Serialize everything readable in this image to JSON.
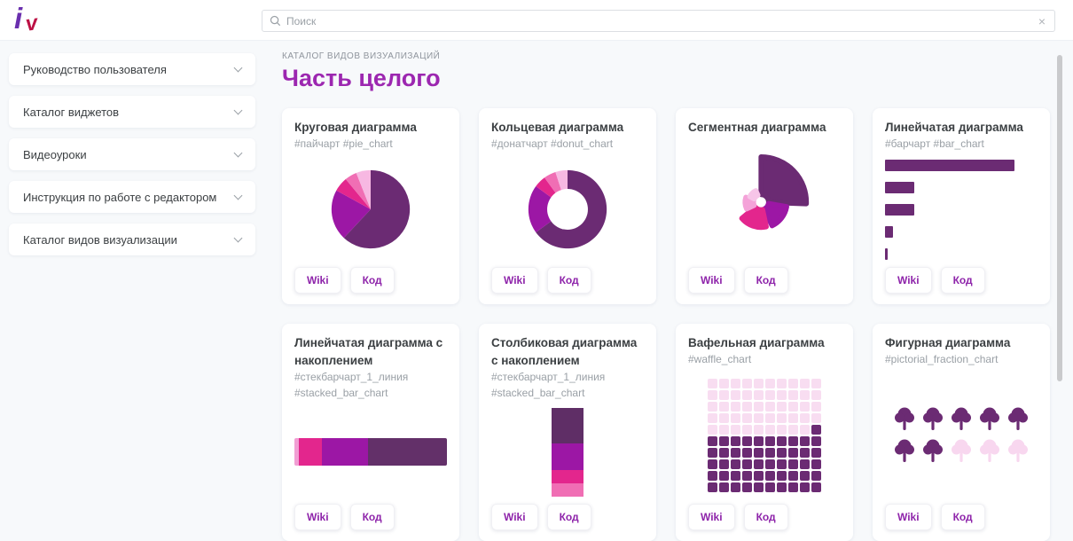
{
  "header": {
    "logo": {
      "char_i": "i",
      "char_v": "v"
    },
    "search_placeholder": "Поиск",
    "clear_label": "×"
  },
  "sidebar": {
    "items": [
      {
        "label": "Руководство пользователя"
      },
      {
        "label": "Каталог виджетов"
      },
      {
        "label": "Видеоуроки"
      },
      {
        "label": "Инструкция по работе с редактором"
      },
      {
        "label": "Каталог видов визуализации"
      }
    ]
  },
  "main": {
    "breadcrumb": "КАТАЛОГ ВИДОВ ВИЗУАЛИЗАЦИЙ",
    "title": "Часть целого",
    "button_labels": {
      "wiki": "Wiki",
      "code": "Код"
    }
  },
  "palette": {
    "dark_purple": "#6b2b73",
    "purple": "#9c17a5",
    "pink": "#e3268d",
    "mid_pink": "#f06eb4",
    "light_pink": "#f5aede",
    "pale_pink": "#f8ddf1",
    "accent_title": "#9c27b0",
    "button_text": "#8e24aa"
  },
  "cards": [
    {
      "title": "Круговая диаграмма",
      "tags": [
        "#пайчарт #pie_chart"
      ],
      "chart": {
        "type": "pie",
        "values": [
          62,
          21,
          6,
          5,
          6
        ],
        "colors": [
          "#6b2b73",
          "#9c17a5",
          "#e3268d",
          "#f06eb4",
          "#f7b8e2"
        ]
      }
    },
    {
      "title": "Кольцевая диаграмма",
      "tags": [
        "#донатчарт #donut_chart"
      ],
      "chart": {
        "type": "donut",
        "hole": 0.52,
        "values": [
          65,
          20,
          5,
          5,
          5
        ],
        "colors": [
          "#6b2b73",
          "#9c17a5",
          "#e3268d",
          "#f06eb4",
          "#f7b8e2"
        ]
      }
    },
    {
      "title": "Сегментная диаграмма",
      "tags": [],
      "chart": {
        "type": "segment",
        "petals": [
          {
            "start": 0,
            "end": 92,
            "r": 54,
            "color": "#6b2b73"
          },
          {
            "start": 100,
            "end": 155,
            "r": 31,
            "color": "#9c17a5"
          },
          {
            "start": 168,
            "end": 230,
            "r": 30,
            "color": "#e3268d"
          },
          {
            "start": 245,
            "end": 288,
            "r": 19,
            "color": "#f4a2d8"
          },
          {
            "start": 296,
            "end": 336,
            "r": 15,
            "color": "#f7c5e8"
          }
        ]
      }
    },
    {
      "title": "Линейчатая диаграмма",
      "tags": [
        "#барчарт #bar_chart"
      ],
      "chart": {
        "type": "bars",
        "values": [
          85,
          19,
          19,
          5,
          2
        ],
        "color": "#6b2b73"
      }
    },
    {
      "title": "Линейчатая диаграмма с накоплением",
      "tags": [
        "#стекбарчарт_1_линия",
        "#stacked_bar_chart"
      ],
      "chart": {
        "type": "hstack",
        "segments": [
          {
            "v": 3,
            "c": "#f19ed3"
          },
          {
            "v": 15,
            "c": "#e3268d"
          },
          {
            "v": 30,
            "c": "#9c17a5"
          },
          {
            "v": 52,
            "c": "#633069"
          }
        ]
      }
    },
    {
      "title": "Столбиковая диаграмма с накоплением",
      "tags": [
        "#стекбарчарт_1_линия",
        "#stacked_bar_chart"
      ],
      "chart": {
        "type": "vstack",
        "segments": [
          {
            "v": 40,
            "c": "#5f2e66"
          },
          {
            "v": 30,
            "c": "#9c17a5"
          },
          {
            "v": 15,
            "c": "#e3268d"
          },
          {
            "v": 15,
            "c": "#f06eb4"
          }
        ]
      }
    },
    {
      "title": "Вафельная диаграмма",
      "tags": [
        "#waffle_chart"
      ],
      "chart": {
        "type": "waffle",
        "cols": 10,
        "rows": 10,
        "filled": 51,
        "fill": "#6b2b73",
        "empty": "#f8ddf1"
      }
    },
    {
      "title": "Фигурная диаграмма",
      "tags": [
        "#pictorial_fraction_chart"
      ],
      "chart": {
        "type": "trees",
        "total": 10,
        "filled": 7,
        "per_row": 5,
        "fill": "#6b2b73",
        "empty": "#f8d7ef"
      }
    }
  ]
}
